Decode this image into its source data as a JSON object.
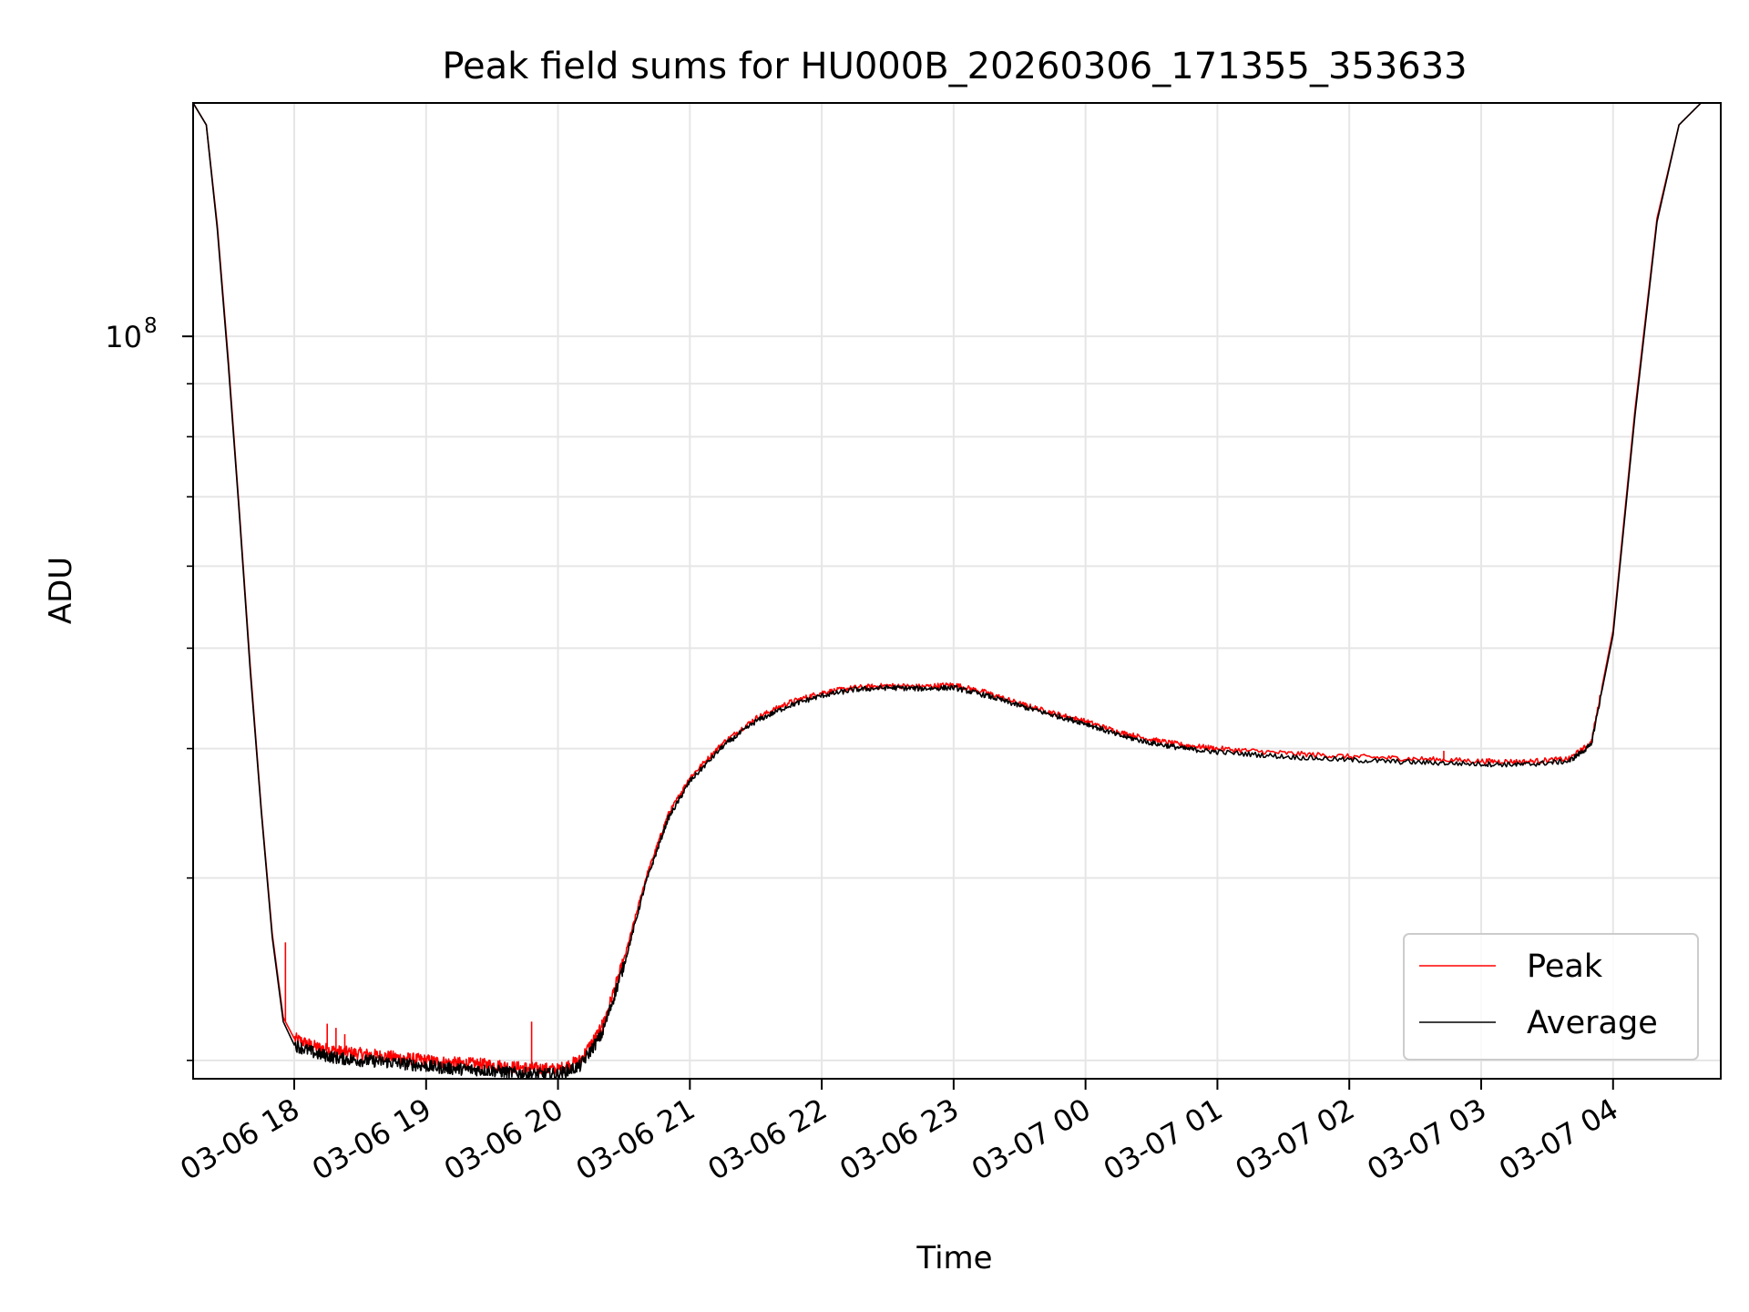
{
  "chart_data": {
    "type": "line",
    "title": "Peak field sums for HU000B_20260306_171355_353633",
    "xlabel": "Time",
    "ylabel": "ADU",
    "yscale": "log",
    "ylim": [
      19200000,
      168000000
    ],
    "xlim": [
      "2026-03-06 17:14",
      "2026-03-07 04:49"
    ],
    "x_ticks": [
      {
        "t": "2026-03-06 18:00",
        "label": "03-06 18"
      },
      {
        "t": "2026-03-06 19:00",
        "label": "03-06 19"
      },
      {
        "t": "2026-03-06 20:00",
        "label": "03-06 20"
      },
      {
        "t": "2026-03-06 21:00",
        "label": "03-06 21"
      },
      {
        "t": "2026-03-06 22:00",
        "label": "03-06 22"
      },
      {
        "t": "2026-03-06 23:00",
        "label": "03-06 23"
      },
      {
        "t": "2026-03-07 00:00",
        "label": "03-07 00"
      },
      {
        "t": "2026-03-07 01:00",
        "label": "03-07 01"
      },
      {
        "t": "2026-03-07 02:00",
        "label": "03-07 02"
      },
      {
        "t": "2026-03-07 03:00",
        "label": "03-07 03"
      },
      {
        "t": "2026-03-07 04:00",
        "label": "03-07 04"
      }
    ],
    "y_major_ticks": [
      {
        "value": 100000000,
        "label": "10",
        "exponent": "8"
      }
    ],
    "y_minor_ticks": [
      20000000,
      30000000,
      40000000,
      50000000,
      60000000,
      70000000,
      80000000,
      90000000,
      200000000
    ],
    "grid": true,
    "legend_position": "lower-right",
    "series": [
      {
        "name": "Peak",
        "color": "#ff0000",
        "x": [
          "2026-03-06 17:14",
          "2026-03-06 17:20",
          "2026-03-06 17:25",
          "2026-03-06 17:30",
          "2026-03-06 17:35",
          "2026-03-06 17:40",
          "2026-03-06 17:45",
          "2026-03-06 17:50",
          "2026-03-06 17:55",
          "2026-03-06 18:00",
          "2026-03-06 18:10",
          "2026-03-06 18:20",
          "2026-03-06 18:30",
          "2026-03-06 18:40",
          "2026-03-06 18:50",
          "2026-03-06 19:00",
          "2026-03-06 19:10",
          "2026-03-06 19:20",
          "2026-03-06 19:30",
          "2026-03-06 19:40",
          "2026-03-06 19:50",
          "2026-03-06 20:00",
          "2026-03-06 20:10",
          "2026-03-06 20:20",
          "2026-03-06 20:30",
          "2026-03-06 20:40",
          "2026-03-06 20:50",
          "2026-03-06 21:00",
          "2026-03-06 21:15",
          "2026-03-06 21:30",
          "2026-03-06 21:45",
          "2026-03-06 22:00",
          "2026-03-06 22:15",
          "2026-03-06 22:30",
          "2026-03-06 22:45",
          "2026-03-06 23:00",
          "2026-03-06 23:15",
          "2026-03-06 23:30",
          "2026-03-06 23:45",
          "2026-03-07 00:00",
          "2026-03-07 00:15",
          "2026-03-07 00:30",
          "2026-03-07 00:45",
          "2026-03-07 01:00",
          "2026-03-07 01:30",
          "2026-03-07 02:00",
          "2026-03-07 02:30",
          "2026-03-07 03:00",
          "2026-03-07 03:20",
          "2026-03-07 03:40",
          "2026-03-07 03:50",
          "2026-03-07 04:00",
          "2026-03-07 04:10",
          "2026-03-07 04:20",
          "2026-03-07 04:30",
          "2026-03-07 04:40",
          "2026-03-07 04:49"
        ],
        "y": [
          168000000,
          160000000,
          128000000,
          95000000,
          68000000,
          48000000,
          35000000,
          26500000,
          22000000,
          21000000,
          20600000,
          20400000,
          20300000,
          20200000,
          20100000,
          20000000,
          19900000,
          19850000,
          19800000,
          19700000,
          19650000,
          19600000,
          20000000,
          21500000,
          25000000,
          30000000,
          34500000,
          37500000,
          40500000,
          42800000,
          44300000,
          45300000,
          45800000,
          46000000,
          45900000,
          46100000,
          45300000,
          44200000,
          43300000,
          42500000,
          41500000,
          40800000,
          40300000,
          40000000,
          39600000,
          39300000,
          39100000,
          38900000,
          38850000,
          39100000,
          40500000,
          52000000,
          85000000,
          130000000,
          160000000,
          168000000,
          168000000
        ]
      },
      {
        "name": "Average",
        "color": "#000000",
        "x": [
          "2026-03-06 17:14",
          "2026-03-06 17:20",
          "2026-03-06 17:25",
          "2026-03-06 17:30",
          "2026-03-06 17:35",
          "2026-03-06 17:40",
          "2026-03-06 17:45",
          "2026-03-06 17:50",
          "2026-03-06 17:55",
          "2026-03-06 18:00",
          "2026-03-06 18:10",
          "2026-03-06 18:20",
          "2026-03-06 18:30",
          "2026-03-06 18:40",
          "2026-03-06 18:50",
          "2026-03-06 19:00",
          "2026-03-06 19:10",
          "2026-03-06 19:20",
          "2026-03-06 19:30",
          "2026-03-06 19:40",
          "2026-03-06 19:50",
          "2026-03-06 20:00",
          "2026-03-06 20:10",
          "2026-03-06 20:20",
          "2026-03-06 20:30",
          "2026-03-06 20:40",
          "2026-03-06 20:50",
          "2026-03-06 21:00",
          "2026-03-06 21:15",
          "2026-03-06 21:30",
          "2026-03-06 21:45",
          "2026-03-06 22:00",
          "2026-03-06 22:15",
          "2026-03-06 22:30",
          "2026-03-06 22:45",
          "2026-03-06 23:00",
          "2026-03-06 23:15",
          "2026-03-06 23:30",
          "2026-03-06 23:45",
          "2026-03-07 00:00",
          "2026-03-07 00:15",
          "2026-03-07 00:30",
          "2026-03-07 00:45",
          "2026-03-07 01:00",
          "2026-03-07 01:30",
          "2026-03-07 02:00",
          "2026-03-07 02:30",
          "2026-03-07 03:00",
          "2026-03-07 03:20",
          "2026-03-07 03:40",
          "2026-03-07 03:50",
          "2026-03-07 04:00",
          "2026-03-07 04:10",
          "2026-03-07 04:20",
          "2026-03-07 04:30",
          "2026-03-07 04:40",
          "2026-03-07 04:49"
        ],
        "y": [
          168000000,
          160000000,
          127000000,
          94000000,
          67500000,
          47500000,
          34800000,
          26300000,
          21800000,
          20700000,
          20300000,
          20100000,
          20000000,
          19950000,
          19850000,
          19750000,
          19650000,
          19600000,
          19550000,
          19450000,
          19400000,
          19400000,
          19750000,
          21200000,
          24700000,
          29700000,
          34200000,
          37200000,
          40200000,
          42500000,
          44000000,
          45000000,
          45600000,
          45800000,
          45700000,
          45800000,
          45000000,
          44000000,
          43100000,
          42300000,
          41200000,
          40500000,
          40000000,
          39700000,
          39300000,
          39000000,
          38800000,
          38650000,
          38600000,
          38900000,
          40300000,
          51500000,
          84000000,
          129000000,
          160000000,
          168000000,
          168000000
        ]
      }
    ],
    "spikes": [
      {
        "series": "Peak",
        "t": "2026-03-06 17:56",
        "y": 26000000
      },
      {
        "series": "Peak",
        "t": "2026-03-06 18:15",
        "y": 21700000
      },
      {
        "series": "Peak",
        "t": "2026-03-06 18:19",
        "y": 21500000
      },
      {
        "series": "Peak",
        "t": "2026-03-06 18:23",
        "y": 21200000
      },
      {
        "series": "Peak",
        "t": "2026-03-06 19:48",
        "y": 21800000
      },
      {
        "series": "Peak",
        "t": "2026-03-06 20:20",
        "y": 21900000
      },
      {
        "series": "Peak",
        "t": "2026-03-07 02:43",
        "y": 39800000
      }
    ]
  }
}
